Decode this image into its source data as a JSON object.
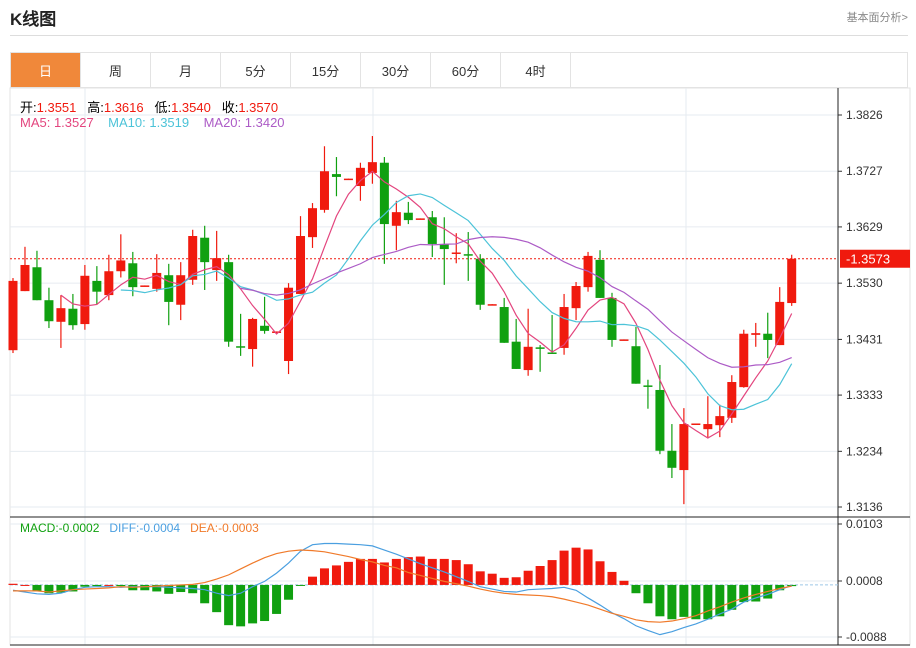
{
  "header": {
    "title": "K线图",
    "link": "基本面分析>"
  },
  "tabs": [
    {
      "label": "日",
      "active": true
    },
    {
      "label": "周"
    },
    {
      "label": "月"
    },
    {
      "label": "5分"
    },
    {
      "label": "15分"
    },
    {
      "label": "30分"
    },
    {
      "label": "60分"
    },
    {
      "label": "4时"
    }
  ],
  "info": {
    "open_label": "开:",
    "open": "1.3551",
    "high_label": "高:",
    "high": "1.3616",
    "low_label": "低:",
    "low": "1.3540",
    "close_label": "收:",
    "close": "1.3570",
    "ma5": "MA5: 1.3527",
    "ma10": "MA10: 1.3519",
    "ma20": "MA20: 1.3420",
    "macd": "MACD:-0.0002",
    "diff": "DIFF:-0.0004",
    "dea": "DEA:-0.0003"
  },
  "colors": {
    "up": "#f01a0e",
    "down": "#10a010",
    "ma5": "#e3457e",
    "ma10": "#4cc3d8",
    "ma20": "#ac5bc6",
    "diff": "#4a9fe0",
    "dea": "#f07a2a",
    "accent": "#f0883a"
  },
  "chart_data": [
    {
      "type": "candlestick",
      "ylim": [
        1.3136,
        1.3826
      ],
      "yticks": [
        "1.3826",
        "1.3727",
        "1.3629",
        "1.3530",
        "1.3431",
        "1.3333",
        "1.3234",
        "1.3136"
      ],
      "current_price": "1.3573",
      "ma_periods": [
        5,
        10,
        20
      ],
      "grid": true,
      "ohlc": [
        [
          1.3412,
          1.3539,
          1.3407,
          1.3534
        ],
        [
          1.3516,
          1.3594,
          1.3516,
          1.3562
        ],
        [
          1.3558,
          1.3587,
          1.35,
          1.35
        ],
        [
          1.35,
          1.3522,
          1.3451,
          1.3463
        ],
        [
          1.3462,
          1.3509,
          1.3416,
          1.3486
        ],
        [
          1.3485,
          1.3511,
          1.3448,
          1.3456
        ],
        [
          1.3458,
          1.3562,
          1.3448,
          1.3543
        ],
        [
          1.3534,
          1.356,
          1.3493,
          1.3515
        ],
        [
          1.3509,
          1.358,
          1.35,
          1.3551
        ],
        [
          1.3551,
          1.3616,
          1.354,
          1.357
        ],
        [
          1.3565,
          1.3585,
          1.3507,
          1.3523
        ],
        [
          1.3524,
          1.3526,
          1.3524,
          1.3526
        ],
        [
          1.352,
          1.3581,
          1.3515,
          1.3548
        ],
        [
          1.3544,
          1.3564,
          1.3456,
          1.3497
        ],
        [
          1.3492,
          1.3567,
          1.3465,
          1.3544
        ],
        [
          1.3536,
          1.3624,
          1.3527,
          1.3613
        ],
        [
          1.361,
          1.3631,
          1.3518,
          1.3567
        ],
        [
          1.3553,
          1.3622,
          1.3534,
          1.3574
        ],
        [
          1.3567,
          1.358,
          1.3418,
          1.3427
        ],
        [
          1.3419,
          1.3476,
          1.3402,
          1.3418
        ],
        [
          1.3414,
          1.3469,
          1.3383,
          1.3467
        ],
        [
          1.3455,
          1.3506,
          1.3441,
          1.3446
        ],
        [
          1.3443,
          1.3445,
          1.3443,
          1.3445
        ],
        [
          1.3393,
          1.353,
          1.337,
          1.3522
        ],
        [
          1.3511,
          1.3648,
          1.3511,
          1.3613
        ],
        [
          1.3611,
          1.3671,
          1.3592,
          1.3662
        ],
        [
          1.3659,
          1.3771,
          1.3654,
          1.3727
        ],
        [
          1.3722,
          1.3752,
          1.3683,
          1.3717
        ],
        [
          1.3712,
          1.3714,
          1.3712,
          1.3714
        ],
        [
          1.3701,
          1.3742,
          1.3675,
          1.3733
        ],
        [
          1.3724,
          1.3789,
          1.3705,
          1.3743
        ],
        [
          1.3742,
          1.3752,
          1.3564,
          1.3634
        ],
        [
          1.3631,
          1.3675,
          1.3588,
          1.3655
        ],
        [
          1.3654,
          1.3673,
          1.3634,
          1.3641
        ],
        [
          1.3642,
          1.3644,
          1.3642,
          1.3644
        ],
        [
          1.3646,
          1.3657,
          1.3576,
          1.3599
        ],
        [
          1.3599,
          1.3646,
          1.3527,
          1.359
        ],
        [
          1.3582,
          1.3618,
          1.3565,
          1.3584
        ],
        [
          1.3581,
          1.362,
          1.3534,
          1.3579
        ],
        [
          1.3573,
          1.3581,
          1.3483,
          1.3492
        ],
        [
          1.3491,
          1.3493,
          1.3491,
          1.3493
        ],
        [
          1.3488,
          1.3504,
          1.3425,
          1.3425
        ],
        [
          1.3427,
          1.3467,
          1.3379,
          1.3379
        ],
        [
          1.3377,
          1.3485,
          1.3367,
          1.3418
        ],
        [
          1.3417,
          1.3421,
          1.3374,
          1.3416
        ],
        [
          1.3408,
          1.3474,
          1.3406,
          1.3406
        ],
        [
          1.3416,
          1.3511,
          1.3404,
          1.3488
        ],
        [
          1.3486,
          1.3532,
          1.3465,
          1.3525
        ],
        [
          1.3523,
          1.3585,
          1.3515,
          1.3578
        ],
        [
          1.3571,
          1.3588,
          1.3504,
          1.3504
        ],
        [
          1.3504,
          1.3513,
          1.3418,
          1.343
        ],
        [
          1.3429,
          1.3431,
          1.3429,
          1.3431
        ],
        [
          1.3419,
          1.3453,
          1.3353,
          1.3353
        ],
        [
          1.335,
          1.336,
          1.3309,
          1.3348
        ],
        [
          1.3342,
          1.3386,
          1.3229,
          1.3235
        ],
        [
          1.3235,
          1.3282,
          1.3187,
          1.3205
        ],
        [
          1.3201,
          1.331,
          1.3141,
          1.3282
        ],
        [
          1.3281,
          1.3283,
          1.3281,
          1.3283
        ],
        [
          1.3273,
          1.3331,
          1.3259,
          1.3282
        ],
        [
          1.328,
          1.3316,
          1.3259,
          1.3296
        ],
        [
          1.3293,
          1.3368,
          1.3284,
          1.3356
        ],
        [
          1.3347,
          1.3448,
          1.3346,
          1.3441
        ],
        [
          1.3439,
          1.346,
          1.3418,
          1.3442
        ],
        [
          1.3441,
          1.3478,
          1.3398,
          1.343
        ],
        [
          1.3421,
          1.3523,
          1.3421,
          1.3497
        ],
        [
          1.3495,
          1.358,
          1.349,
          1.3573
        ]
      ]
    },
    {
      "type": "bar+line",
      "ylim": [
        -0.0088,
        0.0103
      ],
      "yticks": [
        "0.0103",
        "0.0008",
        "-0.0088"
      ],
      "macd": [
        0.0002,
        0.0,
        -0.0011,
        -0.0014,
        -0.0013,
        -0.0011,
        -0.0003,
        -0.0002,
        0.0,
        -0.0002,
        -0.0009,
        -0.0009,
        -0.0011,
        -0.0015,
        -0.0012,
        -0.0014,
        -0.0031,
        -0.0046,
        -0.0068,
        -0.007,
        -0.0065,
        -0.0061,
        -0.0049,
        -0.0025,
        -0.0001,
        0.0014,
        0.0028,
        0.0033,
        0.0039,
        0.0044,
        0.0044,
        0.0038,
        0.0044,
        0.0047,
        0.0048,
        0.0044,
        0.0044,
        0.0042,
        0.0035,
        0.0023,
        0.0019,
        0.0012,
        0.0013,
        0.0024,
        0.0032,
        0.0042,
        0.0058,
        0.0063,
        0.006,
        0.004,
        0.0022,
        0.0007,
        -0.0014,
        -0.0031,
        -0.0053,
        -0.0058,
        -0.0054,
        -0.0058,
        -0.0058,
        -0.0053,
        -0.0042,
        -0.0029,
        -0.0028,
        -0.0023,
        -0.0009,
        -0.0002
      ],
      "diff": [
        -0.0009,
        -0.0012,
        -0.0015,
        -0.0016,
        -0.0014,
        -0.0008,
        -0.0004,
        -0.0003,
        -0.0003,
        -0.0004,
        -0.0003,
        -0.0003,
        -0.0003,
        -0.0004,
        -0.0005,
        -0.0006,
        -0.0008,
        -0.0014,
        -0.0018,
        -0.0014,
        -0.0003,
        0.0006,
        0.002,
        0.0037,
        0.0057,
        0.0068,
        0.007,
        0.007,
        0.0069,
        0.0068,
        0.0066,
        0.0059,
        0.0052,
        0.0044,
        0.0036,
        0.0029,
        0.0022,
        0.0014,
        0.0006,
        -0.0003,
        -0.0007,
        -0.0011,
        -0.0012,
        -0.0008,
        -0.0007,
        -0.0006,
        -0.0004,
        -0.0009,
        -0.0022,
        -0.0034,
        -0.0047,
        -0.0057,
        -0.0069,
        -0.0077,
        -0.0084,
        -0.0079,
        -0.0072,
        -0.0066,
        -0.0058,
        -0.0049,
        -0.0041,
        -0.0029,
        -0.0022,
        -0.0016,
        -0.0008,
        -0.0001
      ],
      "dea": [
        -0.001,
        -0.001,
        -0.001,
        -0.0012,
        -0.001,
        -0.0008,
        -0.0007,
        -0.0006,
        -0.0005,
        -0.0003,
        -0.0004,
        -0.0003,
        -0.0002,
        -0.0001,
        0.0,
        0.0001,
        0.0004,
        0.001,
        0.0017,
        0.0027,
        0.0037,
        0.0046,
        0.0053,
        0.0057,
        0.0059,
        0.0058,
        0.0056,
        0.0052,
        0.0048,
        0.0043,
        0.0039,
        0.0033,
        0.0029,
        0.0021,
        0.0016,
        0.0011,
        0.0006,
        0.0002,
        -0.0002,
        -0.0007,
        -0.0011,
        -0.0014,
        -0.0016,
        -0.0017,
        -0.0018,
        -0.002,
        -0.0024,
        -0.0029,
        -0.0034,
        -0.0041,
        -0.0048,
        -0.0053,
        -0.0059,
        -0.0062,
        -0.0063,
        -0.0061,
        -0.0057,
        -0.0052,
        -0.0044,
        -0.0037,
        -0.0029,
        -0.0022,
        -0.0016,
        -0.0011,
        -0.0006,
        -0.0002
      ]
    }
  ]
}
